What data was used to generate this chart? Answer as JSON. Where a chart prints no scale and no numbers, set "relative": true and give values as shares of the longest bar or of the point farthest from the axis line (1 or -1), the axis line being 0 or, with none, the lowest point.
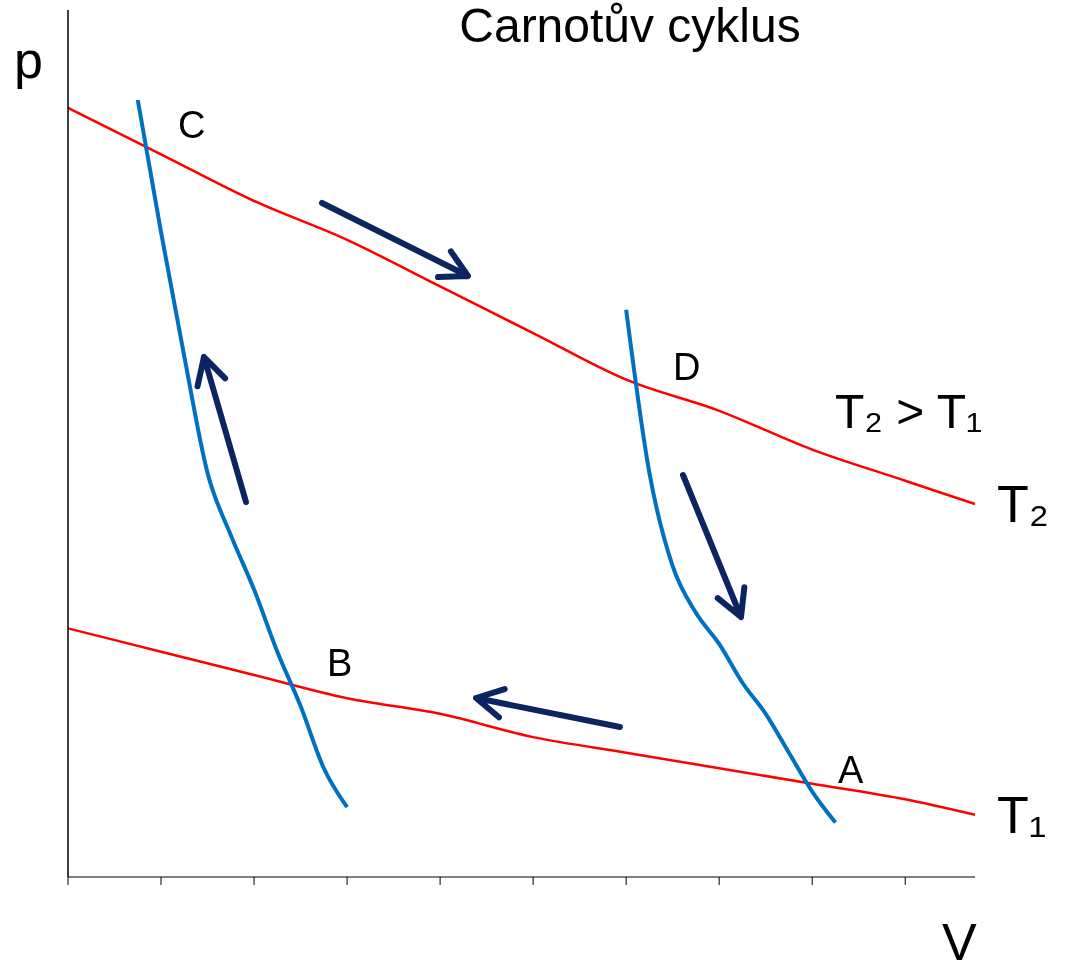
{
  "chart_data": {
    "type": "line",
    "title": "Carnotův cyklus",
    "xlabel": "V",
    "ylabel": "p",
    "relative": true,
    "marker": "none",
    "line_style": "solid",
    "categories": [
      null,
      null,
      null,
      null,
      null,
      null,
      null,
      null,
      null,
      null,
      null,
      null,
      null,
      null,
      null,
      null,
      null,
      null,
      null,
      null,
      null,
      null,
      null,
      null,
      null,
      null,
      null,
      null,
      null,
      null,
      null,
      null,
      null,
      null,
      null,
      null,
      null,
      null,
      null,
      null
    ],
    "series": [
      {
        "name": "T₂",
        "color": "#ff0000",
        "values": [
          0.99,
          null,
          null,
          null,
          0.93,
          null,
          null,
          null,
          0.87,
          null,
          null,
          null,
          0.82,
          null,
          null,
          null,
          0.76,
          null,
          null,
          null,
          0.7,
          null,
          null,
          null,
          0.64,
          null,
          null,
          null,
          0.6,
          null,
          null,
          null,
          0.55,
          null,
          null,
          null,
          0.51,
          null,
          null,
          0.48
        ]
      },
      {
        "name": "T₁",
        "color": "#ff0000",
        "values": [
          0.32,
          null,
          null,
          null,
          0.29,
          null,
          null,
          null,
          0.26,
          null,
          null,
          null,
          0.23,
          null,
          null,
          null,
          0.21,
          null,
          null,
          null,
          0.18,
          null,
          null,
          null,
          0.16,
          null,
          null,
          null,
          0.14,
          null,
          null,
          null,
          0.12,
          null,
          null,
          null,
          0.1,
          null,
          null,
          0.08
        ]
      },
      {
        "color": "#0070c0",
        "values": [
          null,
          null,
          null,
          1,
          0.83,
          0.67,
          0.52,
          0.44,
          0.37,
          0.29,
          0.22,
          0.14,
          0.09,
          null,
          null,
          null,
          null,
          null,
          null,
          null,
          null,
          null,
          null,
          null,
          null,
          null,
          null,
          null,
          null,
          null,
          null,
          null,
          null,
          null,
          null,
          null,
          null,
          null,
          null,
          null
        ]
      },
      {
        "color": "#0070c0",
        "values": [
          null,
          null,
          null,
          null,
          null,
          null,
          null,
          null,
          null,
          null,
          null,
          null,
          null,
          null,
          null,
          null,
          null,
          null,
          null,
          null,
          null,
          null,
          null,
          null,
          0.73,
          0.52,
          0.4,
          0.34,
          0.3,
          0.25,
          0.21,
          0.16,
          0.11,
          0.07,
          null,
          null,
          null,
          null,
          null,
          null
        ]
      }
    ],
    "annotations": [
      "C",
      "D",
      "B",
      "A",
      "T₂ > T₁"
    ]
  }
}
